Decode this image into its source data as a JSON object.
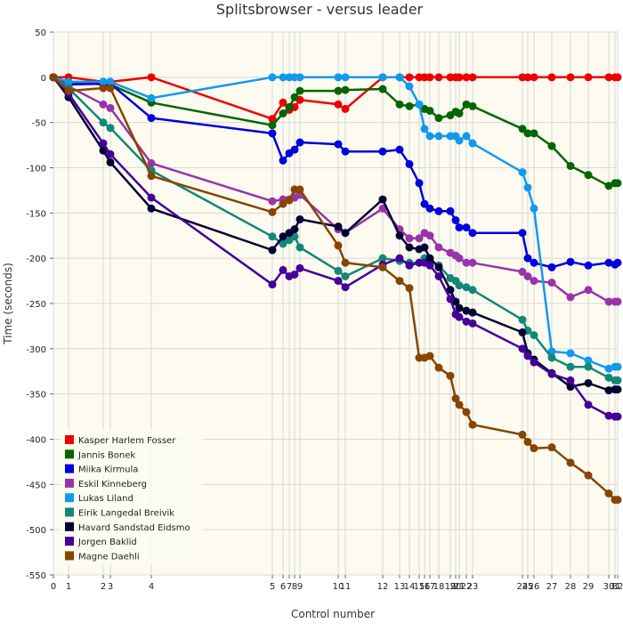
{
  "chart_data": {
    "type": "line",
    "title": "Splitsbrowser - versus leader",
    "xlabel": "Control number",
    "ylabel": "Time (seconds)",
    "ylim": [
      -550,
      50
    ],
    "yticks": [
      50,
      0,
      -50,
      -100,
      -150,
      -200,
      -250,
      -300,
      -350,
      -400,
      -450,
      -500,
      -550
    ],
    "controls": [
      "0",
      "1",
      "2",
      "3",
      "4",
      "5",
      "6",
      "7",
      "8",
      "9",
      "10",
      "11",
      "12",
      "13",
      "14",
      "15",
      "16",
      "17",
      "18",
      "19",
      "20",
      "21",
      "22",
      "23",
      "24",
      "25",
      "26",
      "27",
      "28",
      "29",
      "30",
      "31",
      "32"
    ],
    "x": [
      0,
      17,
      56,
      64,
      110,
      246,
      258,
      265,
      271,
      277,
      320,
      328,
      370,
      389,
      400,
      411,
      417,
      423,
      433,
      446,
      452,
      456,
      464,
      471,
      527,
      533,
      540,
      560,
      581,
      601,
      624,
      631,
      634
    ],
    "grid": true,
    "background": "#fdfbf0",
    "series": [
      {
        "name": "Kasper Harlem Fosser",
        "color": "#ee0000",
        "values": [
          0,
          0,
          -5,
          -5,
          0,
          -46,
          -28,
          -36,
          -33,
          -25,
          -30,
          -35,
          0,
          0,
          0,
          0,
          0,
          0,
          0,
          0,
          0,
          0,
          0,
          0,
          0,
          0,
          0,
          0,
          0,
          0,
          0,
          0,
          0
        ]
      },
      {
        "name": "Jannis Bonek",
        "color": "#006600",
        "values": [
          0,
          -5,
          -8,
          -8,
          -28,
          -53,
          -40,
          -33,
          -22,
          -15,
          -15,
          -14,
          -13,
          -30,
          -32,
          -30,
          -35,
          -37,
          -45,
          -42,
          -38,
          -40,
          -30,
          -32,
          -57,
          -62,
          -62,
          -76,
          -98,
          -108,
          -120,
          -117,
          -117
        ]
      },
      {
        "name": "Miika Kirmula",
        "color": "#0000dd",
        "values": [
          0,
          -8,
          -7,
          -7,
          -45,
          -62,
          -92,
          -84,
          -80,
          -72,
          -74,
          -82,
          -82,
          -80,
          -96,
          -117,
          -140,
          -145,
          -148,
          -148,
          -158,
          -166,
          -166,
          -172,
          -172,
          -200,
          -205,
          -210,
          -204,
          -208,
          -205,
          -207,
          -205
        ]
      },
      {
        "name": "Eskil Kinneberg",
        "color": "#9933aa",
        "values": [
          0,
          -10,
          -30,
          -34,
          -95,
          -137,
          -135,
          -135,
          -133,
          -130,
          -168,
          -172,
          -145,
          -168,
          -178,
          -178,
          -172,
          -175,
          -188,
          -194,
          -197,
          -200,
          -205,
          -205,
          -215,
          -220,
          -225,
          -227,
          -243,
          -235,
          -248,
          -248,
          -248
        ]
      },
      {
        "name": "Lukas Liland",
        "color": "#1199ee",
        "values": [
          0,
          -5,
          -5,
          -5,
          -23,
          0,
          0,
          0,
          0,
          0,
          0,
          0,
          0,
          0,
          -10,
          -30,
          -57,
          -65,
          -65,
          -65,
          -65,
          -70,
          -65,
          -73,
          -105,
          -122,
          -145,
          -303,
          -305,
          -313,
          -322,
          -320,
          -320
        ]
      },
      {
        "name": "Eirik Langedal Breivik",
        "color": "#118877",
        "values": [
          0,
          -12,
          -50,
          -56,
          -103,
          -176,
          -184,
          -180,
          -176,
          -188,
          -214,
          -220,
          -200,
          -203,
          -205,
          -205,
          -200,
          -202,
          -208,
          -222,
          -225,
          -230,
          -232,
          -235,
          -268,
          -280,
          -285,
          -310,
          -320,
          -320,
          -332,
          -335,
          -335
        ]
      },
      {
        "name": "Havard Sandstad Eidsmo",
        "color": "#000033",
        "values": [
          0,
          -22,
          -81,
          -94,
          -145,
          -191,
          -176,
          -172,
          -168,
          -157,
          -165,
          -172,
          -135,
          -175,
          -188,
          -190,
          -188,
          -200,
          -210,
          -235,
          -248,
          -255,
          -258,
          -260,
          -282,
          -305,
          -312,
          -327,
          -342,
          -338,
          -346,
          -345,
          -345
        ]
      },
      {
        "name": "Jorgen Baklid",
        "color": "#440099",
        "values": [
          0,
          -18,
          -73,
          -85,
          -133,
          -229,
          -213,
          -220,
          -218,
          -211,
          -225,
          -232,
          -207,
          -200,
          -208,
          -205,
          -205,
          -208,
          -220,
          -245,
          -262,
          -265,
          -270,
          -272,
          -300,
          -308,
          -315,
          -328,
          -335,
          -362,
          -374,
          -375,
          -375
        ]
      },
      {
        "name": "Magne Daehli",
        "color": "#884400",
        "values": [
          0,
          -15,
          -12,
          -12,
          -109,
          -149,
          -140,
          -136,
          -124,
          -124,
          -186,
          -205,
          -210,
          -225,
          -233,
          -310,
          -310,
          -308,
          -321,
          -330,
          -355,
          -362,
          -370,
          -384,
          -395,
          -403,
          -410,
          -409,
          -426,
          -440,
          -460,
          -467,
          -467
        ]
      }
    ]
  }
}
